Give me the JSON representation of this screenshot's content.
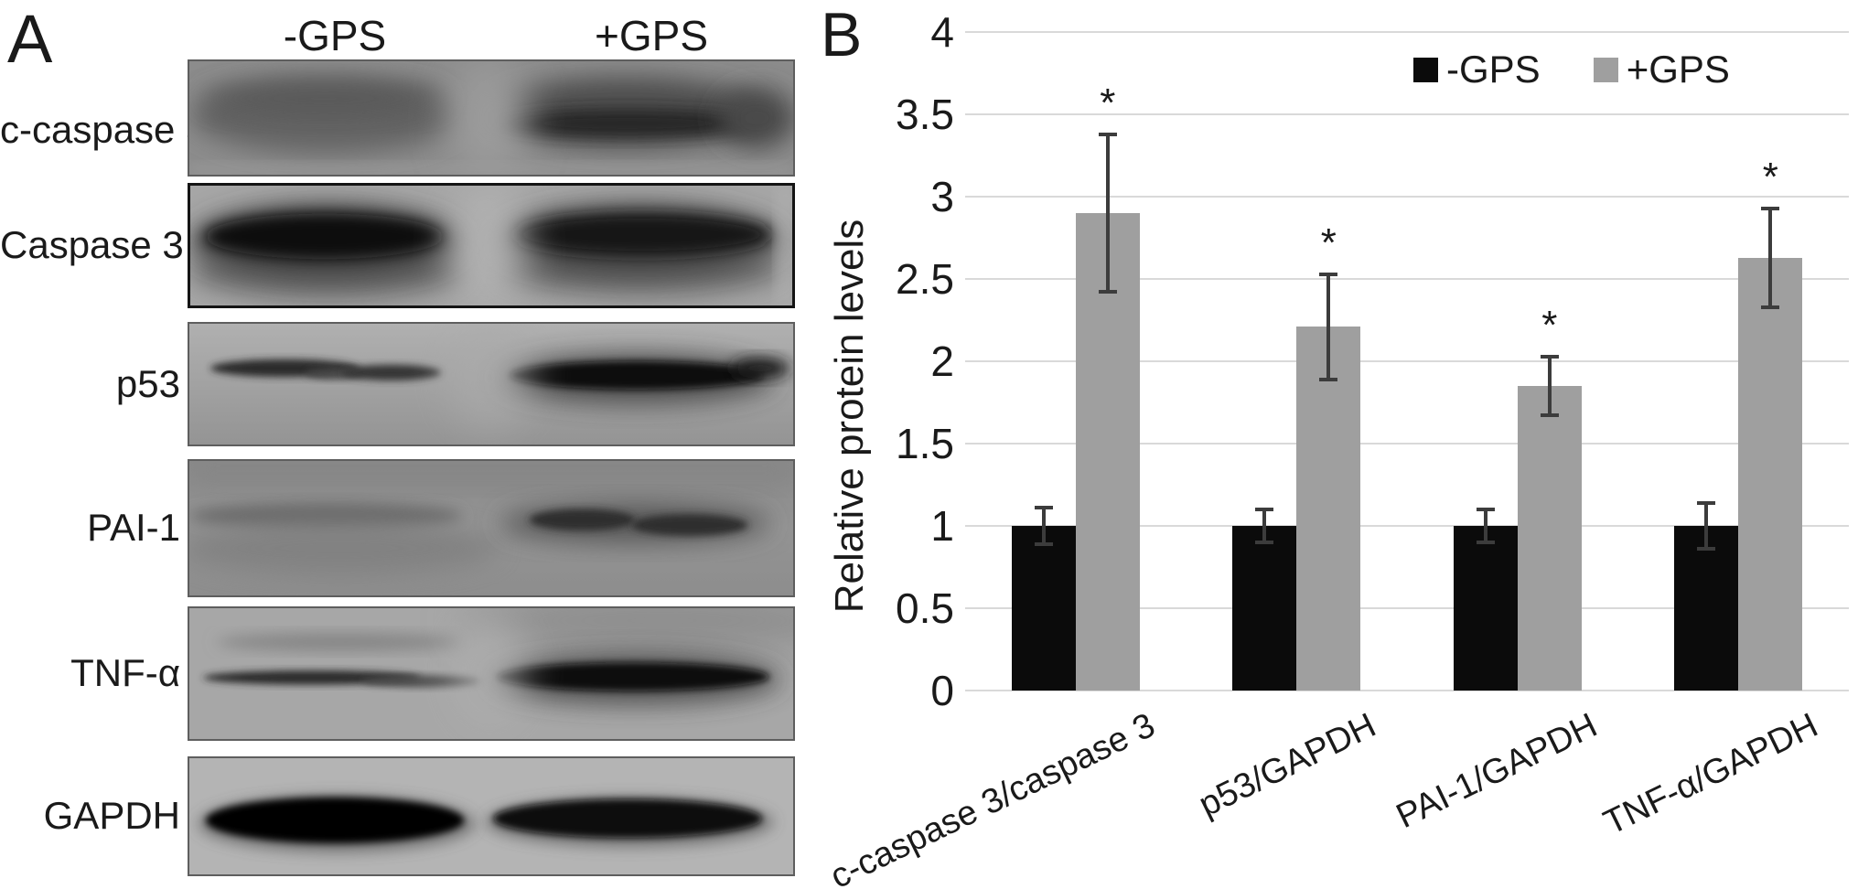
{
  "figure": {
    "panel_a_letter": "A",
    "panel_b_letter": "B"
  },
  "panel_a": {
    "column_headers": [
      "-GPS",
      "+GPS"
    ],
    "rows": [
      {
        "label": "c-caspase 3"
      },
      {
        "label": "Caspase 3"
      },
      {
        "label": "p53"
      },
      {
        "label": "PAI-1"
      },
      {
        "label": "TNF-α"
      },
      {
        "label": "GAPDH"
      }
    ]
  },
  "chart_data": {
    "type": "bar",
    "title": "",
    "xlabel": "",
    "ylabel": "Relative protein levels",
    "ylim": [
      0,
      4
    ],
    "yticks": [
      0,
      0.5,
      1,
      1.5,
      2,
      2.5,
      3,
      3.5,
      4
    ],
    "grid": true,
    "legend_position": "top-right-inside",
    "categories": [
      "c-caspase 3/caspase 3",
      "p53/GAPDH",
      "PAI-1/GAPDH",
      "TNF-α/GAPDH"
    ],
    "series": [
      {
        "name": "-GPS",
        "color": "#0b0b0b",
        "values": [
          1.0,
          1.0,
          1.0,
          1.0
        ],
        "errors": [
          0.11,
          0.1,
          0.1,
          0.14
        ],
        "significance": [
          "",
          "",
          "",
          ""
        ]
      },
      {
        "name": "+GPS",
        "color": "#9f9f9f",
        "values": [
          2.9,
          2.21,
          1.85,
          2.63
        ],
        "errors": [
          0.48,
          0.32,
          0.18,
          0.3
        ],
        "significance": [
          "*",
          "*",
          "*",
          "*"
        ]
      }
    ],
    "style": {
      "grid_color": "#d9d9d9",
      "error_bar_color": "#3c3c3c",
      "text_color": "#1a1a1a"
    }
  }
}
